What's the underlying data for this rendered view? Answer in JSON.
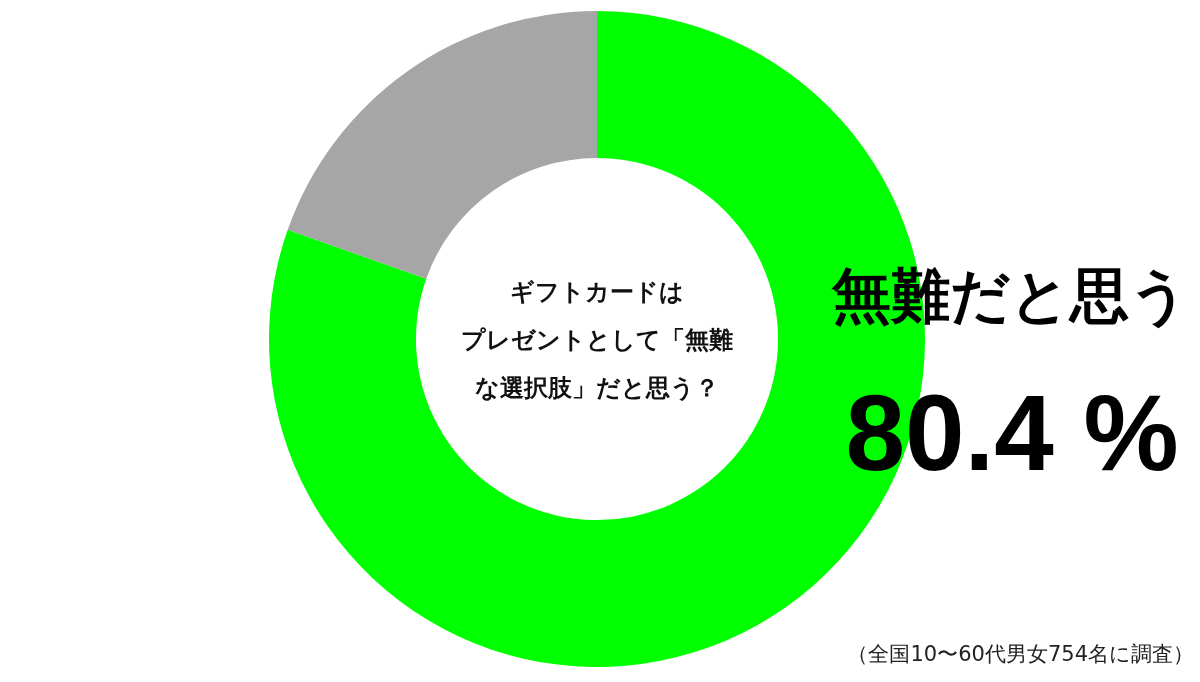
{
  "chart_data": {
    "type": "donut",
    "title": "ギフトカードはプレゼントとして「無難な選択肢」だと思う？",
    "categories": [
      "無難だと思う",
      null
    ],
    "values": [
      80.4,
      19.6
    ],
    "colors": [
      "#00ff00",
      "#a6a6a6"
    ],
    "value_labels": [
      "80.4 %",
      null
    ],
    "annotations": [
      "（全国10〜60代男女754名に調査）"
    ]
  }
}
